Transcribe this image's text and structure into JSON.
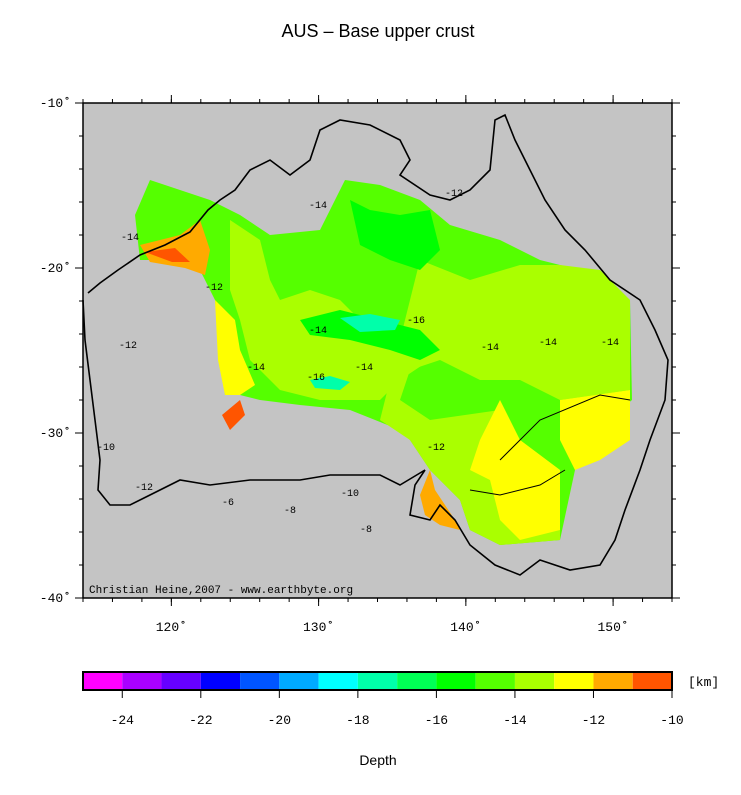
{
  "chart_data": {
    "type": "map",
    "title": "AUS – Base upper crust",
    "xlim": [
      114,
      154
    ],
    "ylim": [
      -40,
      -10
    ],
    "xticks": [
      {
        "value": 120,
        "label": "120˚"
      },
      {
        "value": 130,
        "label": "130˚"
      },
      {
        "value": 140,
        "label": "140˚"
      },
      {
        "value": 150,
        "label": "150˚"
      }
    ],
    "yticks": [
      {
        "value": -10,
        "label": "-10˚"
      },
      {
        "value": -20,
        "label": "-20˚"
      },
      {
        "value": -30,
        "label": "-30˚"
      },
      {
        "value": -40,
        "label": "-40˚"
      }
    ],
    "credit": "Christian Heine,2007 - www.earthbyte.org",
    "contour_labels": [
      "-14",
      "-14",
      "-12",
      "-12",
      "-14",
      "-16",
      "-14",
      "-14",
      "-16",
      "-14",
      "-14",
      "-14",
      "-12",
      "-12",
      "-10",
      "-6",
      "-8",
      "-8",
      "-12",
      "-10"
    ],
    "colorbar": {
      "levels": [
        -25,
        -24,
        -23,
        -22,
        -21,
        -20,
        -19,
        -18,
        -17,
        -16,
        -15,
        -14,
        -13,
        -12,
        -11,
        -10
      ],
      "colors": [
        "#ff00ff",
        "#aa00ff",
        "#6600ff",
        "#0000ff",
        "#0055ff",
        "#00aaff",
        "#00ffff",
        "#00ffaa",
        "#00ff55",
        "#00ff00",
        "#55ff00",
        "#aaff00",
        "#ffff00",
        "#ffaa00",
        "#ff5500"
      ],
      "xlim": [
        -25,
        -10
      ],
      "xticks": [
        -24,
        -22,
        -20,
        -18,
        -16,
        -14,
        -12,
        -10
      ],
      "unit": "[km]",
      "xlabel": "Depth"
    }
  }
}
